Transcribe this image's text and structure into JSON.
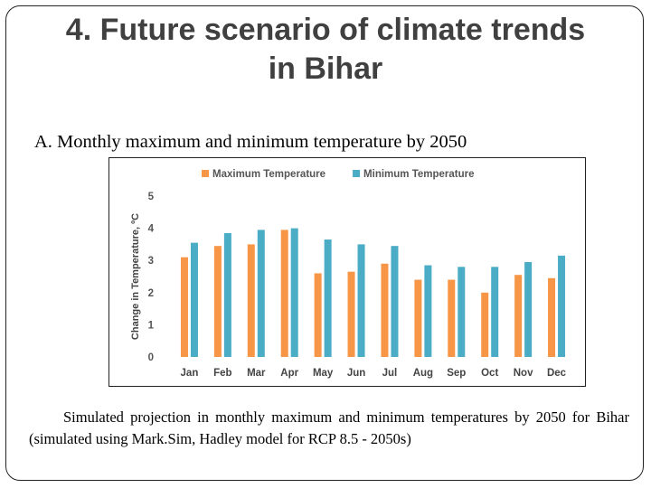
{
  "slide": {
    "title": "4. Future scenario of climate trends in Bihar",
    "subtitle": "A. Monthly maximum and minimum temperature by 2050",
    "caption": "Simulated projection in monthly maximum and minimum temperatures by 2050 for Bihar (simulated using Mark.Sim, Hadley model for RCP 8.5 - 2050s)"
  },
  "chart_data": {
    "type": "bar",
    "title": "",
    "xlabel": "",
    "ylabel": "Change in Temperature, ºC",
    "ylim": [
      0,
      5
    ],
    "yticks": [
      "0",
      "1",
      "2",
      "3",
      "4",
      "5"
    ],
    "grid": false,
    "legend": "top",
    "categories": [
      "Jan",
      "Feb",
      "Mar",
      "Apr",
      "May",
      "Jun",
      "Jul",
      "Aug",
      "Sep",
      "Oct",
      "Nov",
      "Dec"
    ],
    "series": [
      {
        "name": "Maximum Temperature",
        "color": "#F79646",
        "values": [
          3.1,
          3.45,
          3.5,
          3.95,
          2.6,
          2.65,
          2.9,
          2.4,
          2.4,
          2.0,
          2.55,
          2.45
        ]
      },
      {
        "name": "Minimum Temperature",
        "color": "#4BACC6",
        "values": [
          3.55,
          3.85,
          3.95,
          4.0,
          3.65,
          3.5,
          3.45,
          2.85,
          2.8,
          2.8,
          2.95,
          3.15
        ]
      }
    ]
  }
}
